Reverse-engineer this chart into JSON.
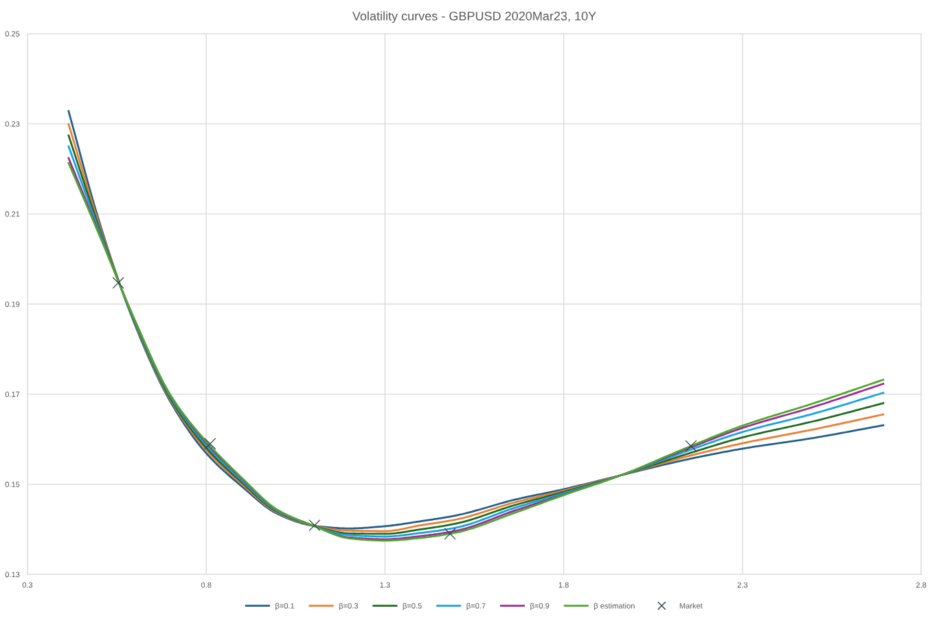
{
  "chart_data": {
    "type": "line",
    "title": "Volatility curves - GBPUSD 2020Mar23, 10Y",
    "x": [
      0.415,
      0.5,
      0.6,
      0.7,
      0.8,
      0.9,
      1.0,
      1.1,
      1.2,
      1.3,
      1.4,
      1.5,
      1.664,
      1.8,
      1.96,
      2.156,
      2.3,
      2.5,
      2.694
    ],
    "series": [
      {
        "name": "β=0.1",
        "color": "#215f8c",
        "values": [
          0.2328,
          0.2085,
          0.1855,
          0.1683,
          0.1569,
          0.1495,
          0.1434,
          0.1408,
          0.1402,
          0.1407,
          0.1418,
          0.1431,
          0.1466,
          0.1489,
          0.152,
          0.1557,
          0.1579,
          0.1603,
          0.1631
        ]
      },
      {
        "name": "β=0.3",
        "color": "#ed7d31",
        "values": [
          0.2299,
          0.2078,
          0.1858,
          0.1687,
          0.1576,
          0.15,
          0.1436,
          0.1408,
          0.1397,
          0.1396,
          0.1409,
          0.1422,
          0.146,
          0.1486,
          0.152,
          0.1564,
          0.1591,
          0.1622,
          0.1655
        ]
      },
      {
        "name": "β=0.5",
        "color": "#1e6b1e",
        "values": [
          0.2274,
          0.2071,
          0.186,
          0.169,
          0.1581,
          0.1504,
          0.1438,
          0.1408,
          0.1391,
          0.139,
          0.14,
          0.1413,
          0.1454,
          0.1483,
          0.152,
          0.157,
          0.1604,
          0.164,
          0.168
        ]
      },
      {
        "name": "β=0.7",
        "color": "#17a2e0",
        "values": [
          0.225,
          0.2064,
          0.1862,
          0.1694,
          0.1587,
          0.1508,
          0.144,
          0.1408,
          0.1387,
          0.1384,
          0.1392,
          0.1404,
          0.1448,
          0.148,
          0.152,
          0.1577,
          0.1616,
          0.1657,
          0.1703
        ]
      },
      {
        "name": "β=0.9",
        "color": "#a02b93",
        "values": [
          0.2224,
          0.2058,
          0.1864,
          0.1697,
          0.1592,
          0.1512,
          0.1442,
          0.1408,
          0.1382,
          0.1378,
          0.1385,
          0.1397,
          0.1442,
          0.1477,
          0.152,
          0.1582,
          0.1625,
          0.1672,
          0.1723
        ]
      },
      {
        "name": "β estimation",
        "color": "#4ea72e",
        "values": [
          0.2213,
          0.2055,
          0.1865,
          0.1698,
          0.1595,
          0.1514,
          0.1443,
          0.1408,
          0.138,
          0.1375,
          0.1381,
          0.1393,
          0.1437,
          0.1476,
          0.152,
          0.1585,
          0.163,
          0.168,
          0.1732
        ]
      },
      {
        "name": "Market",
        "type": "scatter",
        "marker": "cross",
        "color": "#2f3b4c",
        "x": [
          0.554,
          0.811,
          1.103,
          1.482,
          2.156
        ],
        "values": [
          0.1947,
          0.159,
          0.1409,
          0.139,
          0.1585
        ]
      }
    ],
    "xlim": [
      0.3,
      2.8
    ],
    "xticks": [
      0.3,
      0.8,
      1.3,
      1.8,
      2.3,
      2.8
    ],
    "ylim": [
      0.13,
      0.25
    ],
    "yticks": [
      0.13,
      0.15,
      0.17,
      0.19,
      0.21,
      0.23,
      0.25
    ],
    "grid": true,
    "legend": "bottom",
    "marker": "none",
    "line_style": "solid"
  }
}
